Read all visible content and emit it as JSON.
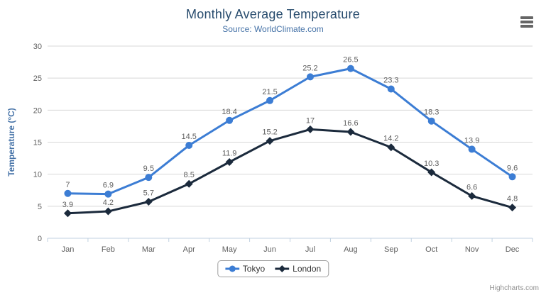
{
  "chart_data": {
    "type": "line",
    "title": "Monthly Average Temperature",
    "subtitle": "Source: WorldClimate.com",
    "categories": [
      "Jan",
      "Feb",
      "Mar",
      "Apr",
      "May",
      "Jun",
      "Jul",
      "Aug",
      "Sep",
      "Oct",
      "Nov",
      "Dec"
    ],
    "series": [
      {
        "name": "Tokyo",
        "marker": "circle",
        "color": "#3c7dd4",
        "values": [
          7,
          6.9,
          9.5,
          14.5,
          18.4,
          21.5,
          25.2,
          26.5,
          23.3,
          18.3,
          13.9,
          9.6
        ]
      },
      {
        "name": "London",
        "marker": "diamond",
        "color": "#1b2a3c",
        "values": [
          3.9,
          4.2,
          5.7,
          8.5,
          11.9,
          15.2,
          17,
          16.6,
          14.2,
          10.3,
          6.6,
          4.8
        ]
      }
    ],
    "xlabel": "",
    "ylabel": "Temperature (°C)",
    "ylim": [
      0,
      30
    ],
    "yticks": [
      0,
      5,
      10,
      15,
      20,
      25,
      30
    ],
    "grid": true,
    "data_labels": true,
    "legend_position": "bottom-center"
  },
  "colors": {
    "title": "#274b6d",
    "subtitle": "#4572a7",
    "axis_title": "#4572a7",
    "tick_label": "#606060",
    "data_label": "#606060",
    "grid_line": "#d8d8d8",
    "axis_line": "#c0d0e0",
    "legend_text": "#333333",
    "credits": "#909090",
    "menu_icon": "#666666"
  },
  "menu": {
    "icon": "hamburger-menu-icon"
  },
  "credits": {
    "label": "Highcharts.com"
  }
}
